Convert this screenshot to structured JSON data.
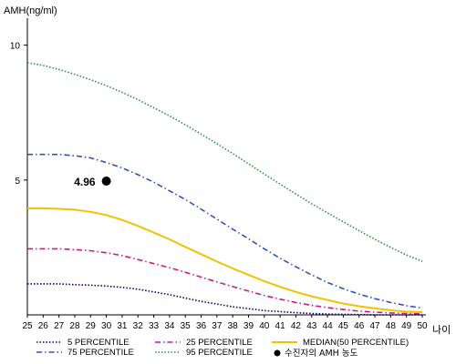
{
  "chart_data": {
    "type": "line",
    "ylabel": "AMH(ng/ml)",
    "xlabel": "나이",
    "xlim": [
      25,
      50
    ],
    "ylim": [
      0,
      11
    ],
    "x_ticks": [
      25,
      26,
      27,
      28,
      29,
      30,
      31,
      32,
      33,
      34,
      35,
      36,
      37,
      38,
      39,
      40,
      41,
      42,
      43,
      44,
      45,
      46,
      47,
      48,
      49,
      50
    ],
    "y_ticks": [
      5,
      10
    ],
    "series": [
      {
        "name": "5 PERCENTILE",
        "color": "#000080",
        "style": "dotted",
        "x": [
          25,
          26,
          27,
          28,
          29,
          30,
          31,
          32,
          33,
          34,
          35,
          36,
          37,
          38,
          39,
          40,
          41,
          42,
          43,
          44,
          45,
          46,
          47,
          48,
          49,
          50
        ],
        "y": [
          1.15,
          1.15,
          1.15,
          1.12,
          1.1,
          1.07,
          1.02,
          0.95,
          0.85,
          0.75,
          0.62,
          0.5,
          0.4,
          0.3,
          0.23,
          0.16,
          0.12,
          0.08,
          0.05,
          0.03,
          0.02,
          0.01,
          0.0,
          0.0,
          0.0,
          0.0
        ]
      },
      {
        "name": "25 PERCENTILE",
        "color": "#d6187e",
        "style": "dashdot",
        "x": [
          25,
          26,
          27,
          28,
          29,
          30,
          31,
          32,
          33,
          34,
          35,
          36,
          37,
          38,
          39,
          40,
          41,
          42,
          43,
          44,
          45,
          46,
          47,
          48,
          49,
          50
        ],
        "y": [
          2.45,
          2.45,
          2.45,
          2.42,
          2.38,
          2.3,
          2.2,
          2.05,
          1.9,
          1.75,
          1.58,
          1.4,
          1.22,
          1.05,
          0.88,
          0.72,
          0.58,
          0.46,
          0.35,
          0.27,
          0.2,
          0.14,
          0.1,
          0.07,
          0.05,
          0.04
        ]
      },
      {
        "name": "MEDIAN(50 PERCENTILE)",
        "color": "#f2c200",
        "style": "solid",
        "x": [
          25,
          26,
          27,
          28,
          29,
          30,
          31,
          32,
          33,
          34,
          35,
          36,
          37,
          38,
          39,
          40,
          41,
          42,
          43,
          44,
          45,
          46,
          47,
          48,
          49,
          50
        ],
        "y": [
          3.95,
          3.95,
          3.93,
          3.9,
          3.82,
          3.7,
          3.52,
          3.3,
          3.05,
          2.8,
          2.52,
          2.25,
          1.98,
          1.72,
          1.48,
          1.25,
          1.04,
          0.85,
          0.69,
          0.55,
          0.42,
          0.32,
          0.24,
          0.17,
          0.12,
          0.1
        ]
      },
      {
        "name": "75 PERCENTILE",
        "color": "#3050c8",
        "style": "dashdot",
        "x": [
          25,
          26,
          27,
          28,
          29,
          30,
          31,
          32,
          33,
          34,
          35,
          36,
          37,
          38,
          39,
          40,
          41,
          42,
          43,
          44,
          45,
          46,
          47,
          48,
          49,
          50
        ],
        "y": [
          5.95,
          5.95,
          5.95,
          5.9,
          5.82,
          5.65,
          5.45,
          5.2,
          4.92,
          4.6,
          4.28,
          3.92,
          3.55,
          3.18,
          2.82,
          2.45,
          2.1,
          1.78,
          1.48,
          1.2,
          0.97,
          0.77,
          0.6,
          0.46,
          0.34,
          0.25
        ]
      },
      {
        "name": "95 PERCENTILE",
        "color": "#2e8b57",
        "style": "dotted",
        "x": [
          25,
          26,
          27,
          28,
          29,
          30,
          31,
          32,
          33,
          34,
          35,
          36,
          37,
          38,
          39,
          40,
          41,
          42,
          43,
          44,
          45,
          46,
          47,
          48,
          49,
          50
        ],
        "y": [
          9.35,
          9.25,
          9.1,
          8.92,
          8.72,
          8.5,
          8.25,
          7.98,
          7.68,
          7.38,
          7.05,
          6.7,
          6.35,
          5.98,
          5.6,
          5.22,
          4.85,
          4.48,
          4.12,
          3.78,
          3.45,
          3.12,
          2.8,
          2.5,
          2.22,
          1.98
        ]
      }
    ],
    "point": {
      "x": 30,
      "y": 4.96,
      "label": "4.96",
      "color": "#000000"
    },
    "legend": {
      "items": [
        {
          "label": "5 PERCENTILE",
          "color": "#000080",
          "style": "dotted"
        },
        {
          "label": "25 PERCENTILE",
          "color": "#d6187e",
          "style": "dashdot"
        },
        {
          "label": "MEDIAN(50 PERCENTILE)",
          "color": "#f2c200",
          "style": "solid"
        },
        {
          "label": "75 PERCENTILE",
          "color": "#3050c8",
          "style": "dashdot"
        },
        {
          "label": "95 PERCENTILE",
          "color": "#2e8b57",
          "style": "dotted"
        },
        {
          "label": "수진자의 AMH 농도",
          "color": "#000000",
          "style": "marker"
        }
      ]
    }
  }
}
